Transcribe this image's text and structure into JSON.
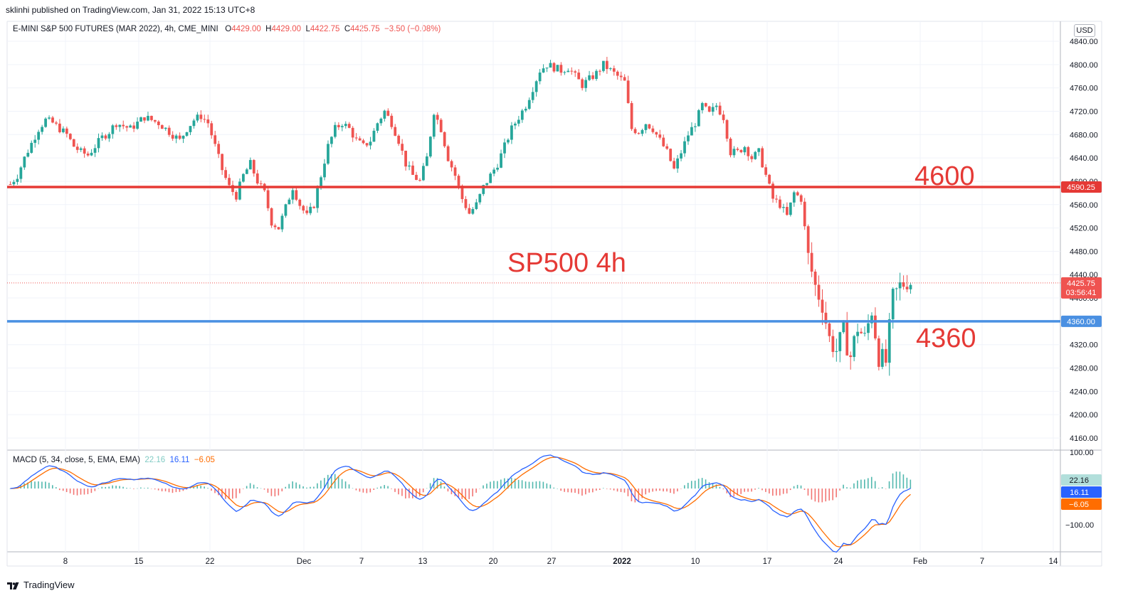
{
  "header": {
    "credit": "sklinhi published on TradingView.com, Jan 31, 2022 15:13 UTC+8"
  },
  "legend": {
    "symbol": "E-MINI S&P 500 FUTURES (MAR 2022), 4h, CME_MINI",
    "o_label": "O",
    "o_value": "4429.00",
    "h_label": "H",
    "h_value": "4429.00",
    "l_label": "L",
    "l_value": "4422.75",
    "c_label": "C",
    "c_value": "4425.75",
    "change": "−3.50 (−0.08%)"
  },
  "currency_button": "USD",
  "annotations": {
    "resistance_label": "4600",
    "support_label": "4360",
    "center_title": "SP500 4h"
  },
  "price_badges": {
    "resistance": "4590.25",
    "last": "4425.75",
    "countdown": "03:56:41",
    "support": "4360.00"
  },
  "macd": {
    "label": "MACD (5, 34, close, 5, EMA, EMA)",
    "hist_value": "22.16",
    "macd_value": "16.11",
    "signal_value": "−6.05",
    "ticks": [
      "100.00",
      "−100.00"
    ]
  },
  "x_axis": {
    "ticks": [
      "8",
      "15",
      "22",
      "Dec",
      "7",
      "13",
      "20",
      "27",
      "2022",
      "10",
      "17",
      "24",
      "Feb",
      "7",
      "14"
    ]
  },
  "y_axis": {
    "ticks": [
      "4840.00",
      "4800.00",
      "4760.00",
      "4720.00",
      "4680.00",
      "4640.00",
      "4600.00",
      "4560.00",
      "4520.00",
      "4480.00",
      "4440.00",
      "4400.00",
      "4360.00",
      "4320.00",
      "4280.00",
      "4240.00",
      "4200.00",
      "4160.00"
    ]
  },
  "colors": {
    "up": "#26a69a",
    "down": "#ef5350",
    "resistance": "#e53935",
    "support": "#4a90e2",
    "macd_line": "#2962ff",
    "signal_line": "#ff6d00",
    "hist_up": "#26a69a",
    "hist_down": "#ef5350"
  },
  "brand": "TradingView",
  "chart_data": {
    "type": "candlestick",
    "timeframe": "4h",
    "ylim": [
      4140,
      4860
    ],
    "horizontal_lines": [
      {
        "name": "4600",
        "value": 4590.25
      },
      {
        "name": "4360",
        "value": 4360.0
      }
    ],
    "last_price": 4425.75,
    "close_path": [
      [
        0,
        4595
      ],
      [
        2,
        4610
      ],
      [
        4,
        4640
      ],
      [
        6,
        4665
      ],
      [
        8,
        4690
      ],
      [
        10,
        4705
      ],
      [
        12,
        4700
      ],
      [
        14,
        4690
      ],
      [
        16,
        4680
      ],
      [
        18,
        4660
      ],
      [
        20,
        4650
      ],
      [
        22,
        4645
      ],
      [
        24,
        4660
      ],
      [
        26,
        4675
      ],
      [
        28,
        4685
      ],
      [
        30,
        4700
      ],
      [
        32,
        4695
      ],
      [
        34,
        4690
      ],
      [
        36,
        4700
      ],
      [
        38,
        4710
      ],
      [
        40,
        4705
      ],
      [
        42,
        4700
      ],
      [
        44,
        4690
      ],
      [
        46,
        4680
      ],
      [
        48,
        4670
      ],
      [
        50,
        4690
      ],
      [
        52,
        4705
      ],
      [
        54,
        4712
      ],
      [
        56,
        4700
      ],
      [
        58,
        4660
      ],
      [
        60,
        4620
      ],
      [
        62,
        4590
      ],
      [
        64,
        4575
      ],
      [
        66,
        4610
      ],
      [
        68,
        4630
      ],
      [
        70,
        4600
      ],
      [
        72,
        4580
      ],
      [
        74,
        4530
      ],
      [
        76,
        4520
      ],
      [
        78,
        4555
      ],
      [
        80,
        4590
      ],
      [
        82,
        4560
      ],
      [
        84,
        4540
      ],
      [
        86,
        4560
      ],
      [
        88,
        4610
      ],
      [
        90,
        4660
      ],
      [
        92,
        4690
      ],
      [
        94,
        4700
      ],
      [
        96,
        4690
      ],
      [
        98,
        4670
      ],
      [
        100,
        4660
      ],
      [
        102,
        4670
      ],
      [
        104,
        4700
      ],
      [
        106,
        4720
      ],
      [
        108,
        4700
      ],
      [
        110,
        4670
      ],
      [
        112,
        4630
      ],
      [
        114,
        4610
      ],
      [
        116,
        4600
      ],
      [
        118,
        4640
      ],
      [
        120,
        4720
      ],
      [
        122,
        4690
      ],
      [
        124,
        4640
      ],
      [
        126,
        4610
      ],
      [
        128,
        4570
      ],
      [
        130,
        4545
      ],
      [
        132,
        4560
      ],
      [
        134,
        4590
      ],
      [
        136,
        4610
      ],
      [
        138,
        4630
      ],
      [
        140,
        4660
      ],
      [
        142,
        4690
      ],
      [
        144,
        4710
      ],
      [
        146,
        4730
      ],
      [
        148,
        4760
      ],
      [
        150,
        4790
      ],
      [
        152,
        4800
      ],
      [
        154,
        4795
      ],
      [
        156,
        4790
      ],
      [
        158,
        4795
      ],
      [
        160,
        4780
      ],
      [
        162,
        4765
      ],
      [
        164,
        4775
      ],
      [
        166,
        4785
      ],
      [
        168,
        4800
      ],
      [
        170,
        4790
      ],
      [
        172,
        4780
      ],
      [
        174,
        4770
      ],
      [
        176,
        4690
      ],
      [
        178,
        4685
      ],
      [
        180,
        4700
      ],
      [
        182,
        4690
      ],
      [
        184,
        4670
      ],
      [
        186,
        4650
      ],
      [
        188,
        4620
      ],
      [
        190,
        4650
      ],
      [
        192,
        4680
      ],
      [
        194,
        4700
      ],
      [
        196,
        4730
      ],
      [
        198,
        4715
      ],
      [
        200,
        4730
      ],
      [
        202,
        4710
      ],
      [
        204,
        4650
      ],
      [
        206,
        4650
      ],
      [
        208,
        4660
      ],
      [
        210,
        4640
      ],
      [
        212,
        4650
      ],
      [
        214,
        4610
      ],
      [
        216,
        4570
      ],
      [
        218,
        4560
      ],
      [
        220,
        4540
      ],
      [
        222,
        4580
      ],
      [
        224,
        4570
      ],
      [
        226,
        4470
      ],
      [
        228,
        4420
      ],
      [
        230,
        4390
      ],
      [
        232,
        4330
      ],
      [
        234,
        4310
      ],
      [
        236,
        4340
      ],
      [
        238,
        4300
      ],
      [
        240,
        4350
      ],
      [
        242,
        4330
      ],
      [
        244,
        4380
      ],
      [
        246,
        4300
      ],
      [
        248,
        4290
      ],
      [
        250,
        4400
      ],
      [
        252,
        4420
      ],
      [
        254,
        4430
      ],
      [
        256,
        4426
      ]
    ]
  }
}
